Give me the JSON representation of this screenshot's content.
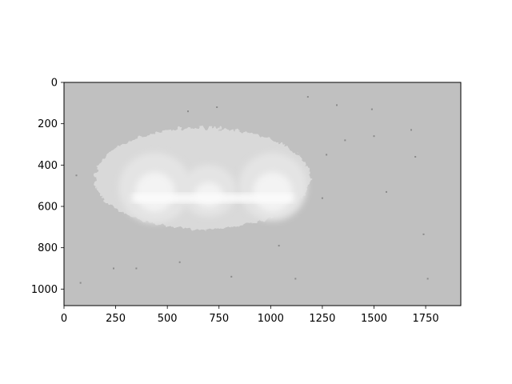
{
  "chart_data": {
    "type": "heatmap",
    "title": "",
    "xlabel": "",
    "ylabel": "",
    "xlim": [
      0,
      1920
    ],
    "ylim": [
      1080,
      0
    ],
    "x_ticks": [
      0,
      250,
      500,
      750,
      1000,
      1250,
      1500,
      1750
    ],
    "y_ticks": [
      0,
      200,
      400,
      600,
      800,
      1000
    ],
    "x_tick_labels": [
      "0",
      "250",
      "500",
      "750",
      "1000",
      "1250",
      "1500",
      "1750"
    ],
    "y_tick_labels": [
      "0",
      "200",
      "400",
      "600",
      "800",
      "1000"
    ],
    "colormap": "gray",
    "colors": {
      "background": "#c0c0c0",
      "halo": "#d9d9d9",
      "glow": "#e4e4e4",
      "core": "#f3f3f3",
      "highlight": "#fcfcfc",
      "speck": "#8a8a8a"
    },
    "regions": [
      {
        "name": "outer-halo",
        "level": "halo",
        "center": [
          670,
          465
        ],
        "radius": [
          520,
          245
        ]
      },
      {
        "name": "left-lobe",
        "level": "glow",
        "center": [
          440,
          510
        ],
        "radius": [
          175,
          170
        ]
      },
      {
        "name": "middle-lobe",
        "level": "glow",
        "center": [
          700,
          525
        ],
        "radius": [
          135,
          125
        ]
      },
      {
        "name": "right-lobe",
        "level": "glow",
        "center": [
          1010,
          505
        ],
        "radius": [
          165,
          165
        ]
      },
      {
        "name": "left-core",
        "level": "core",
        "center": [
          440,
          530
        ],
        "radius": [
          95,
          95
        ]
      },
      {
        "name": "middle-core",
        "level": "core",
        "center": [
          700,
          545
        ],
        "radius": [
          70,
          60
        ]
      },
      {
        "name": "right-core",
        "level": "core",
        "center": [
          1010,
          530
        ],
        "radius": [
          95,
          95
        ]
      }
    ],
    "specks": [
      [
        600,
        140
      ],
      [
        740,
        120
      ],
      [
        1180,
        70
      ],
      [
        1320,
        110
      ],
      [
        1490,
        130
      ],
      [
        1560,
        530
      ],
      [
        1740,
        735
      ],
      [
        1700,
        360
      ],
      [
        1760,
        950
      ],
      [
        1500,
        260
      ],
      [
        560,
        870
      ],
      [
        350,
        900
      ],
      [
        240,
        900
      ],
      [
        1120,
        950
      ],
      [
        80,
        970
      ],
      [
        1250,
        560
      ],
      [
        1270,
        350
      ],
      [
        1360,
        280
      ],
      [
        60,
        450
      ],
      [
        1040,
        790
      ],
      [
        810,
        940
      ],
      [
        1680,
        230
      ]
    ]
  }
}
